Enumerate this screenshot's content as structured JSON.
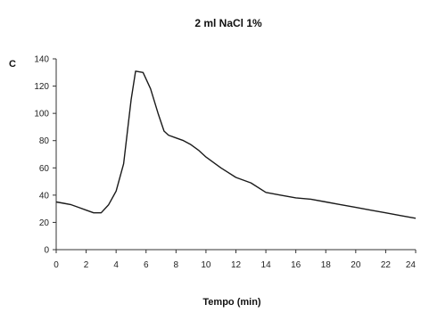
{
  "chart_data": {
    "type": "line",
    "title": "2 ml NaCl 1%",
    "xlabel": "Tempo (min)",
    "ylabel": "C",
    "xlim": [
      0,
      24
    ],
    "ylim": [
      0,
      140
    ],
    "x_ticks": [
      0,
      2,
      4,
      6,
      8,
      10,
      12,
      14,
      16,
      18,
      20,
      22,
      24
    ],
    "x_tick_labels": [
      "0",
      "2",
      "4",
      "6",
      "8",
      "10",
      "12",
      "14",
      "16",
      "18",
      "20",
      "22",
      "24"
    ],
    "y_ticks": [
      0,
      20,
      40,
      60,
      80,
      100,
      120,
      140
    ],
    "y_tick_labels": [
      "0",
      "20",
      "40",
      "60",
      "80",
      "100",
      "120",
      "140"
    ],
    "grid": false,
    "legend": "none",
    "color": "#1a1a1a",
    "series": [
      {
        "x": [
          0,
          0.5,
          1,
          1.5,
          2,
          2.5,
          3,
          3.5,
          4,
          4.5,
          5,
          5.3,
          5.8,
          6.3,
          6.8,
          7.2,
          7.5,
          8,
          8.5,
          9,
          9.5,
          10,
          11,
          12,
          13,
          14,
          15,
          16,
          17,
          18,
          19,
          20,
          21,
          22,
          23,
          24
        ],
        "y": [
          35,
          34,
          33,
          31,
          29,
          27,
          27,
          33,
          43,
          63,
          110,
          131,
          130,
          118,
          100,
          87,
          84,
          82,
          80,
          77,
          73,
          68,
          60,
          53,
          49,
          42,
          40,
          38,
          37,
          35,
          33,
          31,
          29,
          27,
          25,
          23
        ]
      }
    ]
  }
}
